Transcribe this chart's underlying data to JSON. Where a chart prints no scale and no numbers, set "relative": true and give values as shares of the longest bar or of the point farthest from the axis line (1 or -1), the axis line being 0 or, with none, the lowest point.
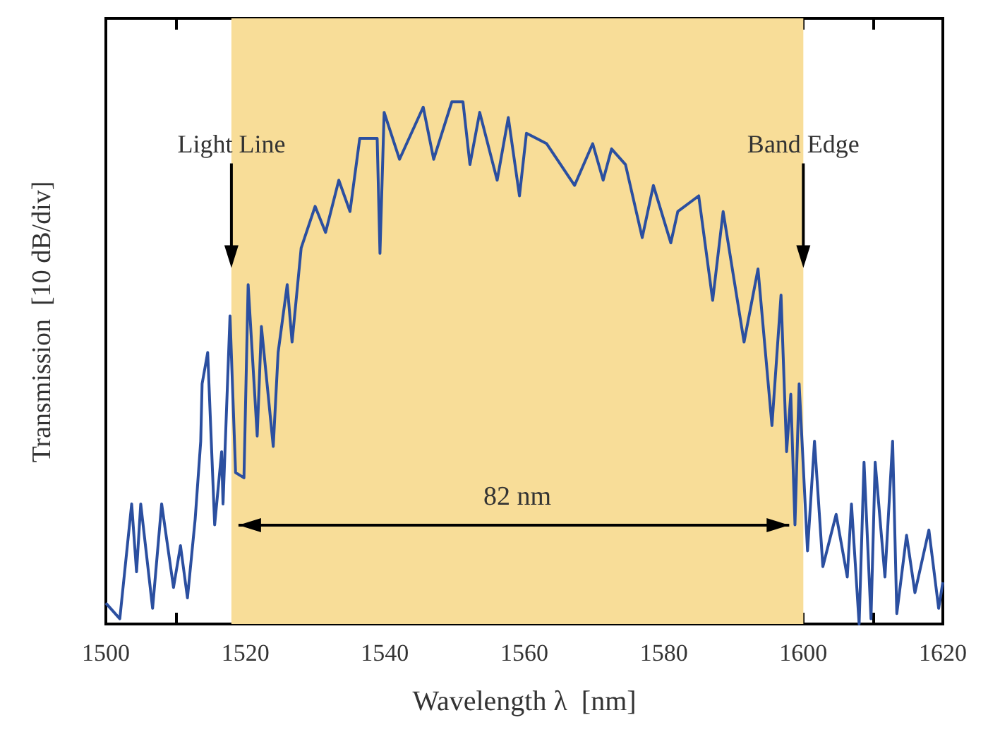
{
  "chart_data": {
    "type": "line",
    "xlabel": "Wavelength λ  [nm]",
    "ylabel": "Transmission  [10 dB/div]",
    "relative": true,
    "xlim": [
      1500,
      1620
    ],
    "xticks": [
      1500,
      {
        "value": 1510,
        "label": null
      },
      1520,
      {
        "value": 1530,
        "label": null
      },
      1540,
      {
        "value": 1550,
        "label": null
      },
      1560,
      {
        "value": 1570,
        "label": null
      },
      1580,
      {
        "value": 1590,
        "label": null
      },
      1600,
      {
        "value": 1610,
        "label": null
      },
      1620
    ],
    "grid": false,
    "marker": "none",
    "line_style": "solid",
    "bands": [
      {
        "axis": "x",
        "from": 1518,
        "to": 1600,
        "label": "82 nm",
        "color": "#f8dd98"
      }
    ],
    "annotations": [
      {
        "text": "Light Line",
        "x": 1518,
        "y": 0.92
      },
      {
        "text": "Band Edge",
        "x": 1600,
        "y": 0.92
      }
    ],
    "series": [
      {
        "color": "#2b4fa0",
        "x": [
          1500,
          1502,
          1503.7,
          1504.4,
          1505,
          1506.7,
          1508,
          1509.7,
          1510.7,
          1511.7,
          1512.8,
          1513.6,
          1513.8,
          1514.6,
          1515.6,
          1516.6,
          1516.8,
          1517.8,
          1518.6,
          1519.8,
          1520.4,
          1521.7,
          1522.3,
          1524,
          1524.7,
          1526,
          1526.7,
          1528,
          1530,
          1531.5,
          1533.4,
          1535,
          1536.4,
          1538.9,
          1539.3,
          1539.9,
          1542.1,
          1545.5,
          1547,
          1549.6,
          1551.2,
          1552.2,
          1553.6,
          1556.1,
          1557.7,
          1559.3,
          1560.3,
          1563.2,
          1565.2,
          1567.2,
          1569.8,
          1571.3,
          1572.5,
          1574.5,
          1576.9,
          1578.5,
          1581,
          1582,
          1585,
          1587,
          1588.5,
          1591.5,
          1593.5,
          1595.5,
          1596.8,
          1597.6,
          1598.2,
          1598.8,
          1599.4,
          1600.6,
          1601.6,
          1602.8,
          1604.7,
          1606.3,
          1606.9,
          1608,
          1608.7,
          1609.7,
          1610.3,
          1611.7,
          1612.8,
          1613.4,
          1614.8,
          1616,
          1618,
          1619.4,
          1620
        ],
        "values": [
          0.04,
          0.01,
          0.23,
          0.1,
          0.23,
          0.03,
          0.23,
          0.07,
          0.15,
          0.05,
          0.2,
          0.35,
          0.46,
          0.52,
          0.19,
          0.33,
          0.23,
          0.59,
          0.29,
          0.28,
          0.65,
          0.36,
          0.57,
          0.34,
          0.52,
          0.65,
          0.54,
          0.72,
          0.8,
          0.75,
          0.85,
          0.79,
          0.93,
          0.93,
          0.71,
          0.98,
          0.89,
          0.99,
          0.89,
          1.0,
          1.0,
          0.88,
          0.98,
          0.85,
          0.97,
          0.82,
          0.94,
          0.92,
          0.88,
          0.84,
          0.92,
          0.85,
          0.91,
          0.88,
          0.74,
          0.84,
          0.73,
          0.79,
          0.82,
          0.62,
          0.79,
          0.54,
          0.68,
          0.38,
          0.63,
          0.33,
          0.44,
          0.19,
          0.46,
          0.14,
          0.35,
          0.11,
          0.21,
          0.09,
          0.23,
          0,
          0.31,
          0.01,
          0.31,
          0.09,
          0.35,
          0.02,
          0.17,
          0.06,
          0.18,
          0.03,
          0.08
        ]
      }
    ]
  }
}
